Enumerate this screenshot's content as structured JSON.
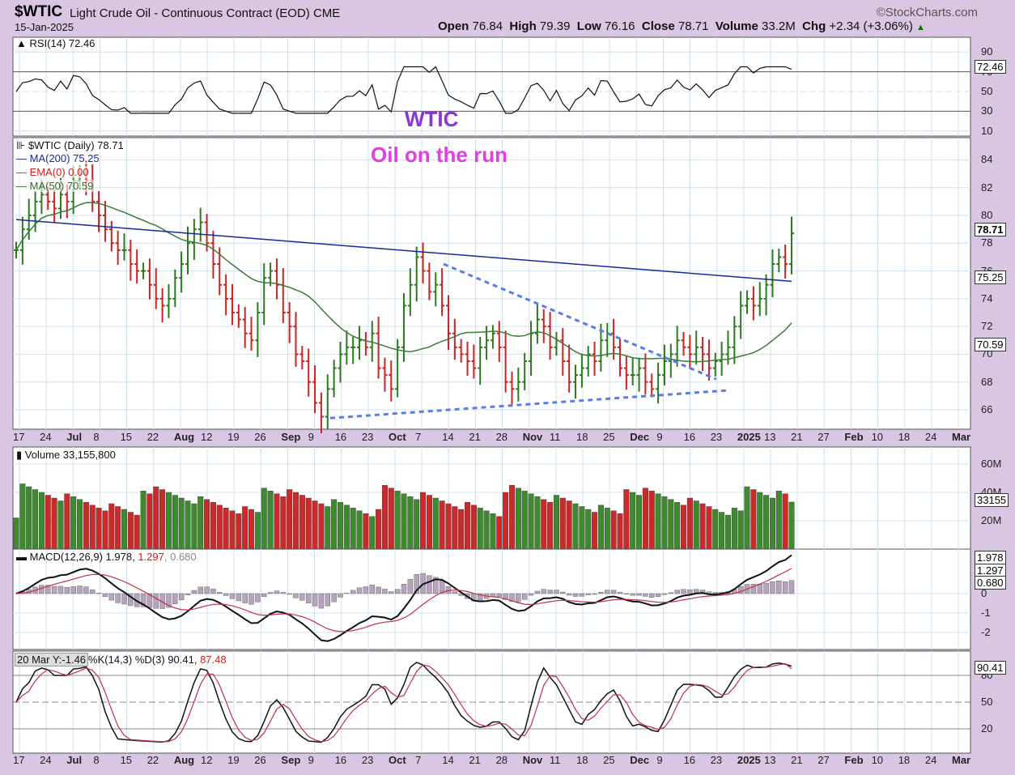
{
  "header": {
    "ticker": "$WTIC",
    "title": "Light Crude Oil - Continuous Contract (EOD) CME",
    "source": "©StockCharts.com",
    "date": "15-Jan-2025",
    "open_label": "Open",
    "open": "76.84",
    "high_label": "High",
    "high": "79.39",
    "low_label": "Low",
    "low": "76.16",
    "close_label": "Close",
    "close": "78.71",
    "volume_label": "Volume",
    "volume": "33.2M",
    "chg_label": "Chg",
    "chg": "+2.34 (+3.06%)",
    "chg_arrow": "▲"
  },
  "annotations": {
    "title": "WTIC",
    "subtitle": "Oil on the run"
  },
  "rsi": {
    "label": "RSI(14) 72.46",
    "value": "72.46",
    "ticks": [
      "90",
      "70",
      "50",
      "30",
      "10"
    ]
  },
  "price": {
    "legend_main": "$WTIC (Daily) 78.71",
    "legend_ma200": "MA(200) 75.25",
    "legend_ema": "EMA(0) 0.00",
    "legend_ma50": "MA(50) 70.59",
    "last": "78.71",
    "ma200": "75.25",
    "ma50": "70.59",
    "ticks": [
      "84",
      "82",
      "80",
      "78",
      "76",
      "74",
      "72",
      "70",
      "68",
      "66"
    ]
  },
  "volume": {
    "label": "Volume 33,155,800",
    "last": "33155",
    "ticks": [
      "60M",
      "40M",
      "20M"
    ]
  },
  "macd": {
    "label_a": "MACD(12,26,9) 1.978,",
    "label_b": "1.297",
    "label_c": ", 0.680",
    "v1": "1.978",
    "v2": "1.297",
    "v3": "0.680",
    "ticks": [
      "0",
      "-1",
      "-2"
    ]
  },
  "stoch": {
    "label": "20 Mar Y:-1.46",
    "label2": "%K(14,3) %D(3) 90.41,",
    "label3": "87.48",
    "value": "90.41",
    "ticks": [
      "80",
      "50",
      "20"
    ]
  },
  "date_axis": [
    {
      "t": "17",
      "b": false
    },
    {
      "t": "24",
      "b": false
    },
    {
      "t": "Jul",
      "b": true
    },
    {
      "t": "8",
      "b": false
    },
    {
      "t": "15",
      "b": false
    },
    {
      "t": "22",
      "b": false
    },
    {
      "t": "Aug",
      "b": true
    },
    {
      "t": "12",
      "b": false
    },
    {
      "t": "19",
      "b": false
    },
    {
      "t": "26",
      "b": false
    },
    {
      "t": "Sep",
      "b": true
    },
    {
      "t": "9",
      "b": false
    },
    {
      "t": "16",
      "b": false
    },
    {
      "t": "23",
      "b": false
    },
    {
      "t": "Oct",
      "b": true
    },
    {
      "t": "7",
      "b": false
    },
    {
      "t": "14",
      "b": false
    },
    {
      "t": "21",
      "b": false
    },
    {
      "t": "28",
      "b": false
    },
    {
      "t": "Nov",
      "b": true
    },
    {
      "t": "11",
      "b": false
    },
    {
      "t": "18",
      "b": false
    },
    {
      "t": "25",
      "b": false
    },
    {
      "t": "Dec",
      "b": true
    },
    {
      "t": "9",
      "b": false
    },
    {
      "t": "16",
      "b": false
    },
    {
      "t": "23",
      "b": false
    },
    {
      "t": "2025",
      "b": true
    },
    {
      "t": "13",
      "b": false
    },
    {
      "t": "21",
      "b": false
    },
    {
      "t": "27",
      "b": false
    },
    {
      "t": "Feb",
      "b": true
    },
    {
      "t": "10",
      "b": false
    },
    {
      "t": "18",
      "b": false
    },
    {
      "t": "24",
      "b": false
    },
    {
      "t": "Mar",
      "b": true
    }
  ],
  "chart_data": {
    "type": "line",
    "price_close": [
      77.5,
      79.0,
      80.0,
      81.0,
      81.5,
      81.0,
      80.5,
      81.5,
      81.0,
      82.5,
      83.0,
      82.5,
      81.0,
      80.0,
      79.0,
      78.0,
      77.5,
      77.5,
      76.5,
      76.0,
      76.0,
      75.0,
      74.0,
      73.5,
      74.0,
      75.5,
      76.5,
      78.0,
      79.0,
      79.5,
      78.0,
      76.5,
      75.0,
      74.0,
      73.0,
      72.5,
      71.5,
      71.0,
      73.0,
      75.5,
      76.0,
      75.0,
      73.0,
      72.0,
      70.0,
      69.5,
      68.0,
      66.5,
      65.5,
      67.5,
      69.0,
      70.0,
      70.5,
      70.5,
      71.0,
      70.5,
      71.5,
      69.0,
      68.5,
      67.5,
      70.5,
      73.5,
      75.0,
      77.0,
      76.0,
      74.5,
      75.0,
      73.5,
      71.5,
      70.5,
      70.0,
      69.5,
      69.0,
      70.5,
      71.0,
      71.5,
      70.5,
      68.0,
      67.5,
      68.0,
      69.5,
      71.5,
      72.5,
      72.0,
      70.5,
      71.0,
      69.5,
      68.0,
      68.5,
      69.0,
      70.0,
      69.5,
      71.0,
      71.5,
      70.5,
      69.0,
      68.5,
      68.5,
      69.0,
      68.0,
      67.5,
      68.5,
      69.5,
      70.0,
      71.0,
      70.5,
      70.0,
      70.5,
      70.0,
      69.0,
      69.5,
      70.0,
      70.5,
      72.0,
      73.5,
      74.0,
      73.5,
      74.0,
      75.0,
      76.5,
      77.0,
      76.5,
      78.71
    ],
    "ma200_last": 75.25,
    "ma50_last": 70.59,
    "rsi_last": 72.46,
    "volume_last": 33155800,
    "macd": {
      "macd": 1.978,
      "signal": 1.297,
      "histogram": 0.68
    },
    "stoch": {
      "k": 90.41,
      "d": 87.48
    },
    "y_range_price": [
      65,
      85
    ]
  }
}
